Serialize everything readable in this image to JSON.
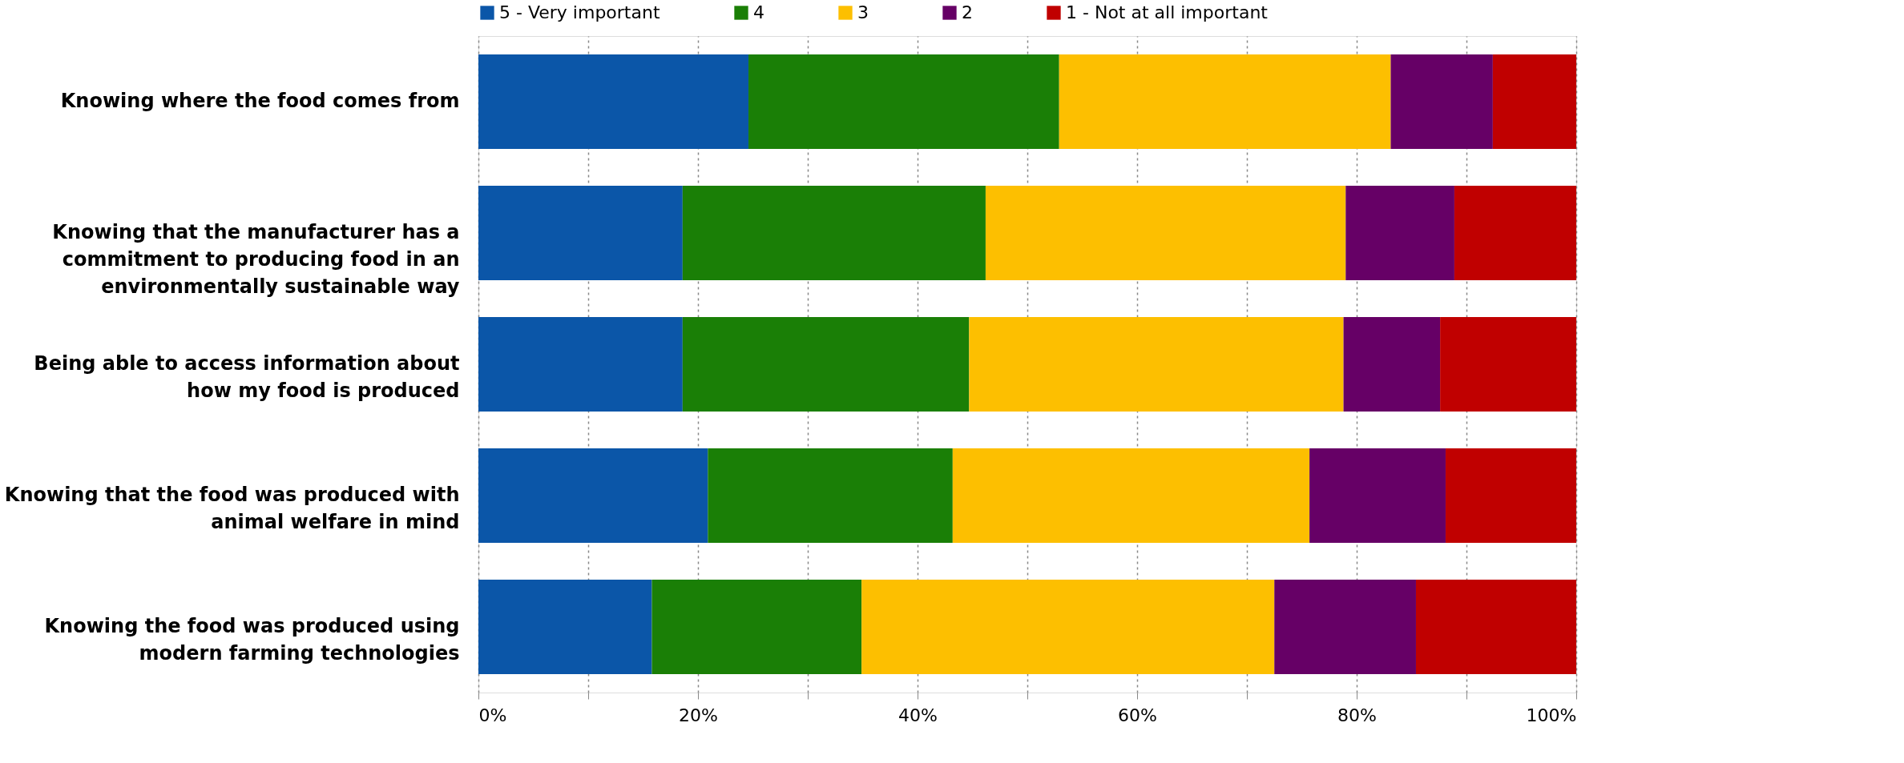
{
  "chart_data": {
    "type": "bar",
    "orientation": "horizontal",
    "stacked": true,
    "categories": [
      "Knowing where the food comes from",
      "Knowing that the manufacturer has a commitment to producing food in an environmentally sustainable way",
      "Being able to access information about how my food is produced",
      "Knowing that the food was produced with animal welfare in mind",
      "Knowing the food was produced using modern farming technologies"
    ],
    "series": [
      {
        "name": "5 - Very important",
        "color": "#0b56a8",
        "values": [
          24.6,
          18.6,
          18.6,
          20.9,
          15.8
        ]
      },
      {
        "name": "4",
        "color": "#1a7f06",
        "values": [
          28.3,
          27.6,
          26.1,
          22.3,
          19.1
        ]
      },
      {
        "name": "3",
        "color": "#fdbf00",
        "values": [
          30.2,
          32.8,
          34.1,
          32.5,
          37.6
        ]
      },
      {
        "name": "2",
        "color": "#660066",
        "values": [
          9.3,
          9.9,
          8.8,
          12.4,
          12.9
        ]
      },
      {
        "name": "1 - Not at all important",
        "color": "#c00000",
        "values": [
          7.6,
          11.1,
          12.4,
          11.9,
          14.6
        ]
      }
    ],
    "xlim": [
      0,
      100
    ],
    "xticks": [
      {
        "value": 0,
        "label": "0%"
      },
      {
        "value": 10,
        "label": null
      },
      {
        "value": 20,
        "label": "20%"
      },
      {
        "value": 30,
        "label": null
      },
      {
        "value": 40,
        "label": "40%"
      },
      {
        "value": 50,
        "label": null
      },
      {
        "value": 60,
        "label": "60%"
      },
      {
        "value": 70,
        "label": null
      },
      {
        "value": 80,
        "label": "80%"
      },
      {
        "value": 90,
        "label": null
      },
      {
        "value": 100,
        "label": "100%"
      }
    ],
    "grid": "x",
    "legend": "top"
  }
}
